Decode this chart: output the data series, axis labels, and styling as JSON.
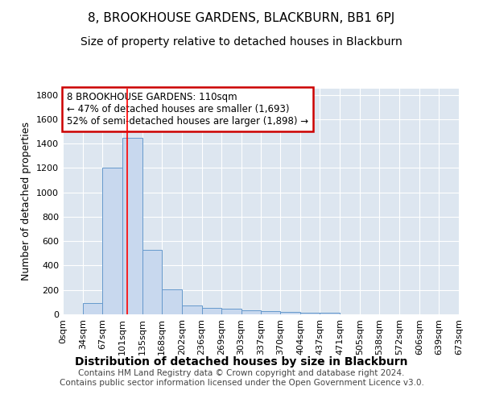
{
  "title": "8, BROOKHOUSE GARDENS, BLACKBURN, BB1 6PJ",
  "subtitle": "Size of property relative to detached houses in Blackburn",
  "xlabel": "Distribution of detached houses by size in Blackburn",
  "ylabel": "Number of detached properties",
  "footer_line1": "Contains HM Land Registry data © Crown copyright and database right 2024.",
  "footer_line2": "Contains public sector information licensed under the Open Government Licence v3.0.",
  "annotation_line1": "8 BROOKHOUSE GARDENS: 110sqm",
  "annotation_line2": "← 47% of detached houses are smaller (1,693)",
  "annotation_line3": "52% of semi-detached houses are larger (1,898) →",
  "bar_edges": [
    0,
    34,
    67,
    101,
    135,
    168,
    202,
    236,
    269,
    303,
    337,
    370,
    404,
    437,
    471,
    505,
    538,
    572,
    606,
    639,
    673
  ],
  "bar_heights": [
    0,
    90,
    1200,
    1450,
    530,
    205,
    70,
    55,
    48,
    35,
    25,
    20,
    15,
    12,
    0,
    0,
    0,
    0,
    0,
    0
  ],
  "bar_color": "#c8d8ee",
  "bar_edge_color": "#6699cc",
  "red_line_x": 110,
  "ylim": [
    0,
    1850
  ],
  "yticks": [
    0,
    200,
    400,
    600,
    800,
    1000,
    1200,
    1400,
    1600,
    1800
  ],
  "background_color": "#ffffff",
  "plot_bg_color": "#dde6f0",
  "annotation_box_color": "white",
  "annotation_box_edge_color": "#cc0000",
  "title_fontsize": 11,
  "subtitle_fontsize": 10,
  "tick_fontsize": 8,
  "ylabel_fontsize": 9,
  "xlabel_fontsize": 10,
  "footer_fontsize": 7.5,
  "annotation_fontsize": 8.5
}
